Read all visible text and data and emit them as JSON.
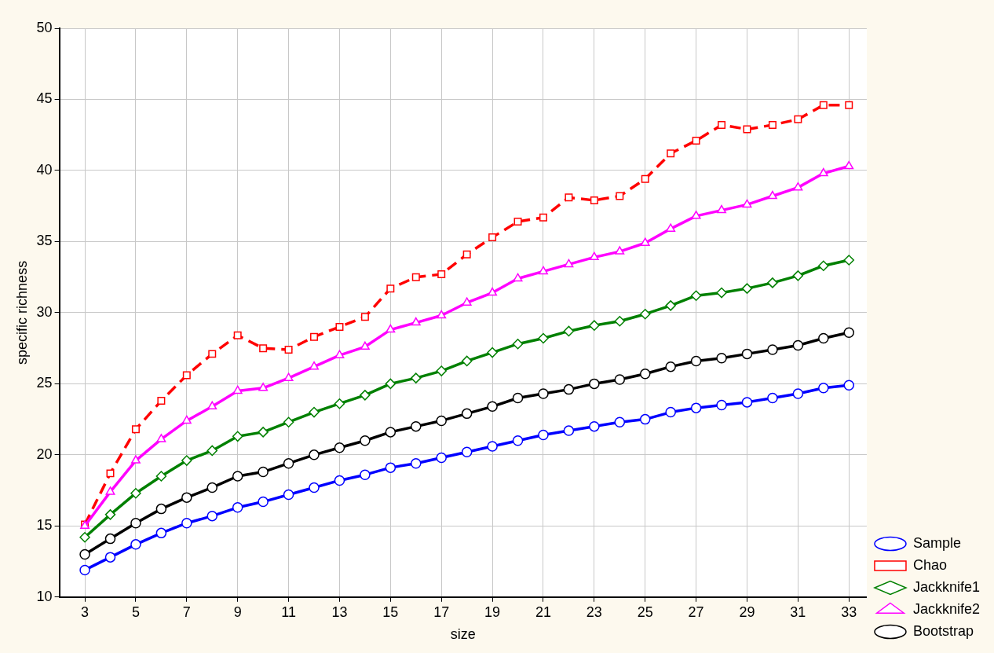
{
  "chart_data": {
    "type": "line",
    "xlabel": "size",
    "ylabel": "specific richness",
    "x": [
      3,
      4,
      5,
      6,
      7,
      8,
      9,
      10,
      11,
      12,
      13,
      14,
      15,
      16,
      17,
      18,
      19,
      20,
      21,
      22,
      23,
      24,
      25,
      26,
      27,
      28,
      29,
      30,
      31,
      32,
      33
    ],
    "xlim": [
      2,
      33.7
    ],
    "xticks": [
      3,
      5,
      7,
      9,
      11,
      13,
      15,
      17,
      19,
      21,
      23,
      25,
      27,
      29,
      31,
      33
    ],
    "ylim": [
      10,
      50
    ],
    "yticks": [
      10,
      15,
      20,
      25,
      30,
      35,
      40,
      45,
      50
    ],
    "grid": true,
    "legend": "bottom right",
    "series": [
      {
        "name": "Sample",
        "color": "#0000ff",
        "marker": "circle",
        "line_style": "solid",
        "values": [
          11.9,
          12.8,
          13.7,
          14.5,
          15.2,
          15.7,
          16.3,
          16.7,
          17.2,
          17.7,
          18.2,
          18.6,
          19.1,
          19.4,
          19.8,
          20.2,
          20.6,
          21.0,
          21.4,
          21.7,
          22.0,
          22.3,
          22.5,
          23.0,
          23.3,
          23.5,
          23.7,
          24.0,
          24.3,
          24.7,
          24.9
        ]
      },
      {
        "name": "Chao",
        "color": "#ff0000",
        "marker": "square",
        "line_style": "dashed",
        "values": [
          15.1,
          18.7,
          21.8,
          23.8,
          25.6,
          27.1,
          28.4,
          27.5,
          27.4,
          28.3,
          29.0,
          29.7,
          31.7,
          32.5,
          32.7,
          34.1,
          35.3,
          36.4,
          36.7,
          38.1,
          37.9,
          38.2,
          39.4,
          41.2,
          42.1,
          43.2,
          42.9,
          43.2,
          43.6,
          44.6,
          44.6
        ]
      },
      {
        "name": "Jackknife1",
        "color": "#008000",
        "marker": "diamond",
        "line_style": "solid",
        "values": [
          14.2,
          15.8,
          17.3,
          18.5,
          19.6,
          20.3,
          21.3,
          21.6,
          22.3,
          23.0,
          23.6,
          24.2,
          25.0,
          25.4,
          25.9,
          26.6,
          27.2,
          27.8,
          28.2,
          28.7,
          29.1,
          29.4,
          29.9,
          30.5,
          31.2,
          31.4,
          31.7,
          32.1,
          32.6,
          33.3,
          33.7
        ]
      },
      {
        "name": "Jackknife2",
        "color": "#ff00ff",
        "marker": "triangle",
        "line_style": "solid",
        "values": [
          15.0,
          17.4,
          19.6,
          21.1,
          22.4,
          23.4,
          24.5,
          24.7,
          25.4,
          26.2,
          27.0,
          27.6,
          28.8,
          29.3,
          29.8,
          30.7,
          31.4,
          32.4,
          32.9,
          33.4,
          33.9,
          34.3,
          34.9,
          35.9,
          36.8,
          37.2,
          37.6,
          38.2,
          38.8,
          39.8,
          40.3
        ]
      },
      {
        "name": "Bootstrap",
        "color": "#000000",
        "marker": "circle",
        "line_style": "solid",
        "values": [
          13.0,
          14.1,
          15.2,
          16.2,
          17.0,
          17.7,
          18.5,
          18.8,
          19.4,
          20.0,
          20.5,
          21.0,
          21.6,
          22.0,
          22.4,
          22.9,
          23.4,
          24.0,
          24.3,
          24.6,
          25.0,
          25.3,
          25.7,
          26.2,
          26.6,
          26.8,
          27.1,
          27.4,
          27.7,
          28.2,
          28.6
        ]
      }
    ]
  }
}
